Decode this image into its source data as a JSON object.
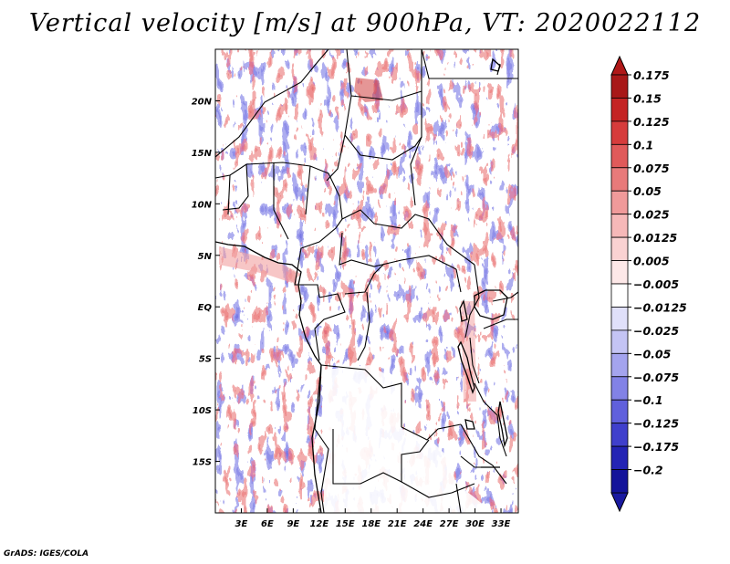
{
  "chart_data": {
    "type": "heatmap",
    "title": "Vertical velocity [m/s] at 900hPa, VT: 2020022112",
    "variable": "Vertical velocity",
    "units": "m/s",
    "level": "900hPa",
    "valid_time": "2020022112",
    "lon_range": [
      0,
      35
    ],
    "lat_range": [
      -20,
      25
    ],
    "x_ticks": [
      {
        "value": 3,
        "label": "3E"
      },
      {
        "value": 6,
        "label": "6E"
      },
      {
        "value": 9,
        "label": "9E"
      },
      {
        "value": 12,
        "label": "12E"
      },
      {
        "value": 15,
        "label": "15E"
      },
      {
        "value": 18,
        "label": "18E"
      },
      {
        "value": 21,
        "label": "21E"
      },
      {
        "value": 24,
        "label": "24E"
      },
      {
        "value": 27,
        "label": "27E"
      },
      {
        "value": 30,
        "label": "30E"
      },
      {
        "value": 33,
        "label": "33E"
      }
    ],
    "y_ticks": [
      {
        "value": 20,
        "label": "20N"
      },
      {
        "value": 15,
        "label": "15N"
      },
      {
        "value": 10,
        "label": "10N"
      },
      {
        "value": 5,
        "label": "5N"
      },
      {
        "value": 0,
        "label": "EQ"
      },
      {
        "value": -5,
        "label": "5S"
      },
      {
        "value": -10,
        "label": "10S"
      },
      {
        "value": -15,
        "label": "15S"
      }
    ],
    "colorbar": {
      "levels": [
        {
          "label": "0.175",
          "color": "#a81818"
        },
        {
          "label": "0.15",
          "color": "#c42424"
        },
        {
          "label": "0.125",
          "color": "#d63c3c"
        },
        {
          "label": "0.1",
          "color": "#e05a5a"
        },
        {
          "label": "0.075",
          "color": "#e87a7a"
        },
        {
          "label": "0.05",
          "color": "#f09a9a"
        },
        {
          "label": "0.025",
          "color": "#f6b8b8"
        },
        {
          "label": "0.0125",
          "color": "#fad2d2"
        },
        {
          "label": "0.005",
          "color": "#fde8e8"
        },
        {
          "label": "−0.005",
          "color": "#ffffff"
        },
        {
          "label": "−0.0125",
          "color": "#e0e0fa"
        },
        {
          "label": "−0.025",
          "color": "#c4c4f4"
        },
        {
          "label": "−0.05",
          "color": "#a4a4ee"
        },
        {
          "label": "−0.075",
          "color": "#8282e6"
        },
        {
          "label": "−0.1",
          "color": "#6060dc"
        },
        {
          "label": "−0.125",
          "color": "#4040cc"
        },
        {
          "label": "−0.175",
          "color": "#2424b4"
        },
        {
          "label": "−0.2",
          "color": "#14149a"
        }
      ],
      "top_color": "#b01818",
      "bottom_color": "#1a1aa0"
    }
  },
  "credit": "GrADS: IGES/COLA"
}
